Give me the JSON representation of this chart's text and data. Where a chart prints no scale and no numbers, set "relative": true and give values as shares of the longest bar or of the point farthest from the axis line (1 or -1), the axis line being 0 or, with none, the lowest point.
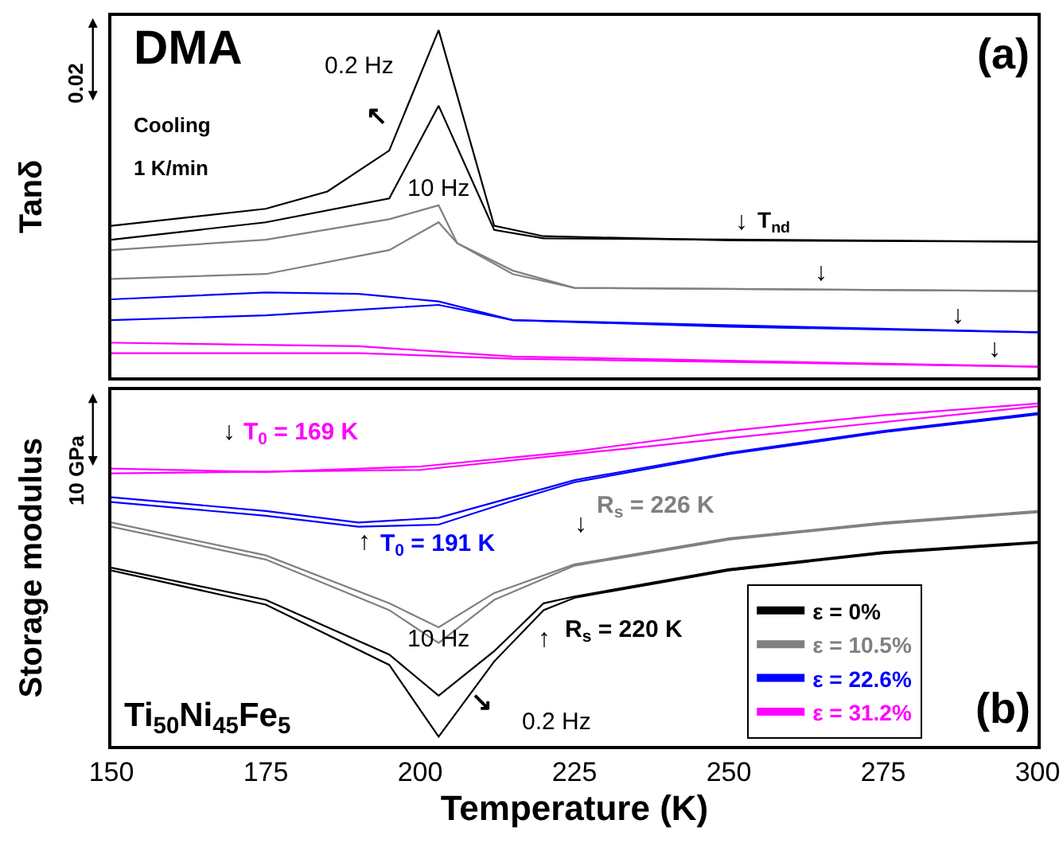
{
  "chart_data": [
    {
      "type": "line",
      "relative": true,
      "ylabel": "Tanδ",
      "xlim": [
        150,
        300
      ],
      "xticks": [
        150,
        175,
        200,
        225,
        250,
        275,
        300
      ],
      "tick_labels": false,
      "legend": false,
      "marker": "none",
      "line_style": "solid",
      "series": [
        {
          "color": "#000000",
          "x": [
            150,
            175,
            185,
            195,
            203,
            212,
            220,
            250,
            300
          ],
          "values": [
            0.436,
            0.485,
            0.535,
            0.653,
            1.0,
            0.436,
            0.406,
            0.394,
            0.39
          ]
        },
        {
          "color": "#000000",
          "x": [
            150,
            175,
            195,
            203,
            212,
            220,
            300
          ],
          "values": [
            0.396,
            0.446,
            0.515,
            0.782,
            0.424,
            0.4,
            0.39
          ]
        },
        {
          "color": "#808080",
          "x": [
            150,
            175,
            195,
            203,
            206,
            215,
            225,
            300
          ],
          "values": [
            0.366,
            0.396,
            0.455,
            0.495,
            0.386,
            0.307,
            0.257,
            0.248
          ]
        },
        {
          "color": "#808080",
          "x": [
            150,
            175,
            195,
            203,
            206,
            215,
            225,
            300
          ],
          "values": [
            0.283,
            0.297,
            0.366,
            0.446,
            0.386,
            0.297,
            0.257,
            0.248
          ]
        },
        {
          "color": "#0000ff",
          "x": [
            150,
            175,
            190,
            203,
            215,
            250,
            300
          ],
          "values": [
            0.224,
            0.244,
            0.24,
            0.218,
            0.164,
            0.145,
            0.129
          ]
        },
        {
          "color": "#0000ff",
          "x": [
            150,
            175,
            190,
            203,
            215,
            300
          ],
          "values": [
            0.164,
            0.178,
            0.194,
            0.208,
            0.164,
            0.129
          ]
        },
        {
          "color": "#ff00ff",
          "x": [
            150,
            190,
            215,
            300
          ],
          "values": [
            0.099,
            0.089,
            0.059,
            0.03
          ]
        },
        {
          "color": "#ff00ff",
          "x": [
            150,
            190,
            215,
            300
          ],
          "values": [
            0.069,
            0.069,
            0.053,
            0.03
          ]
        }
      ],
      "annotations": [
        "DMA",
        "Cooling",
        "1 K/min",
        "(a)",
        "0.02",
        "0.2 Hz",
        "10 Hz",
        "↖",
        "↓",
        "T$_{nd}$",
        "↓",
        "↓",
        "↓"
      ]
    },
    {
      "type": "line",
      "relative": true,
      "ylabel": "Storage modulus",
      "xlabel": "Temperature (K)",
      "xlim": [
        150,
        300
      ],
      "xticks": [
        150,
        175,
        200,
        225,
        250,
        275,
        300
      ],
      "legend": "bottom right",
      "marker": "none",
      "line_style": "solid",
      "series": [
        {
          "name": "ε = 0%",
          "color": "#000000",
          "x": [
            150,
            175,
            195,
            203,
            212,
            220,
            225,
            250,
            275,
            300
          ],
          "values": [
            0.52,
            0.426,
            0.266,
            0.146,
            0.276,
            0.416,
            0.436,
            0.516,
            0.566,
            0.596
          ]
        },
        {
          "color": "#000000",
          "x": [
            150,
            175,
            195,
            203,
            212,
            220,
            225,
            250,
            275,
            300
          ],
          "values": [
            0.512,
            0.412,
            0.236,
            0.026,
            0.246,
            0.396,
            0.432,
            0.512,
            0.562,
            0.592
          ]
        },
        {
          "name": "ε = 10.5%",
          "color": "#808080",
          "x": [
            150,
            175,
            195,
            203,
            212,
            225,
            250,
            275,
            300
          ],
          "values": [
            0.652,
            0.556,
            0.416,
            0.346,
            0.446,
            0.53,
            0.606,
            0.652,
            0.686
          ]
        },
        {
          "color": "#808080",
          "x": [
            150,
            175,
            195,
            203,
            212,
            225,
            250,
            275,
            300
          ],
          "values": [
            0.64,
            0.544,
            0.396,
            0.3,
            0.426,
            0.526,
            0.602,
            0.648,
            0.682
          ]
        },
        {
          "name": "ε = 22.6%",
          "color": "#0000ff",
          "x": [
            150,
            175,
            190,
            203,
            215,
            225,
            250,
            275,
            300
          ],
          "values": [
            0.726,
            0.686,
            0.652,
            0.666,
            0.726,
            0.776,
            0.856,
            0.92,
            0.972
          ]
        },
        {
          "color": "#0000ff",
          "x": [
            150,
            175,
            190,
            203,
            215,
            225,
            250,
            275,
            300
          ],
          "values": [
            0.712,
            0.672,
            0.64,
            0.646,
            0.716,
            0.77,
            0.852,
            0.916,
            0.968
          ]
        },
        {
          "name": "ε = 31.2%",
          "color": "#ff00ff",
          "x": [
            150,
            175,
            200,
            225,
            250,
            275,
            300
          ],
          "values": [
            0.81,
            0.8,
            0.816,
            0.86,
            0.92,
            0.966,
            1.0
          ]
        },
        {
          "color": "#ff00ff",
          "x": [
            150,
            200,
            300
          ],
          "values": [
            0.796,
            0.806,
            0.992
          ]
        }
      ],
      "annotations": [
        "Ti$_{50}$Ni$_{45}$Fe$_{5}$",
        "(b)",
        "10 GPa",
        "↓",
        "T$_{0}$ = 169 K",
        "↑",
        "T$_{0}$ = 191 K",
        "↓",
        "R$_{s}$ = 226 K",
        "↑",
        "R$_{s}$ = 220 K",
        "10 Hz",
        "↘",
        "0.2 Hz"
      ]
    }
  ]
}
